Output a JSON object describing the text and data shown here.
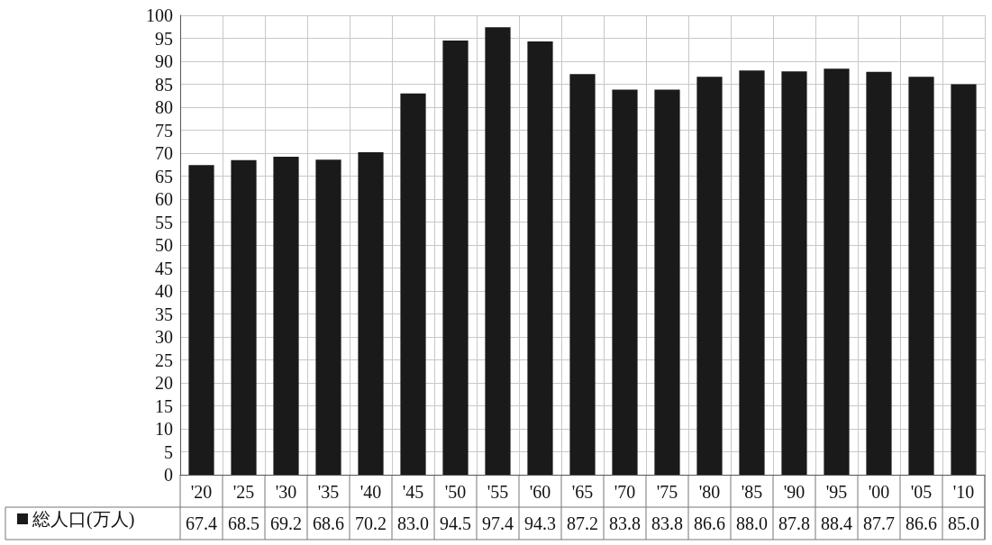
{
  "chart_data": {
    "type": "bar",
    "categories": [
      "'20",
      "'25",
      "'30",
      "'35",
      "'40",
      "'45",
      "'50",
      "'55",
      "'60",
      "'65",
      "'70",
      "'75",
      "'80",
      "'85",
      "'90",
      "'95",
      "'00",
      "'05",
      "'10"
    ],
    "series": [
      {
        "name": "総人口(万人)",
        "color": "#1a1a1a",
        "values": [
          67.4,
          68.5,
          69.2,
          68.6,
          70.2,
          83.0,
          94.5,
          97.4,
          94.3,
          87.2,
          83.8,
          83.8,
          86.6,
          88.0,
          87.8,
          88.4,
          87.7,
          86.6,
          85.0
        ],
        "value_labels": [
          "67.4",
          "68.5",
          "69.2",
          "68.6",
          "70.2",
          "83.0",
          "94.5",
          "97.4",
          "94.3",
          "87.2",
          "83.8",
          "83.8",
          "86.6",
          "88.0",
          "87.8",
          "88.4",
          "87.7",
          "86.6",
          "85.0"
        ]
      }
    ],
    "ylim": [
      0,
      100
    ],
    "yticks": [
      0,
      5,
      10,
      15,
      20,
      25,
      30,
      35,
      40,
      45,
      50,
      55,
      60,
      65,
      70,
      75,
      80,
      85,
      90,
      95,
      100
    ],
    "grid": true,
    "legend": "bottom left"
  }
}
